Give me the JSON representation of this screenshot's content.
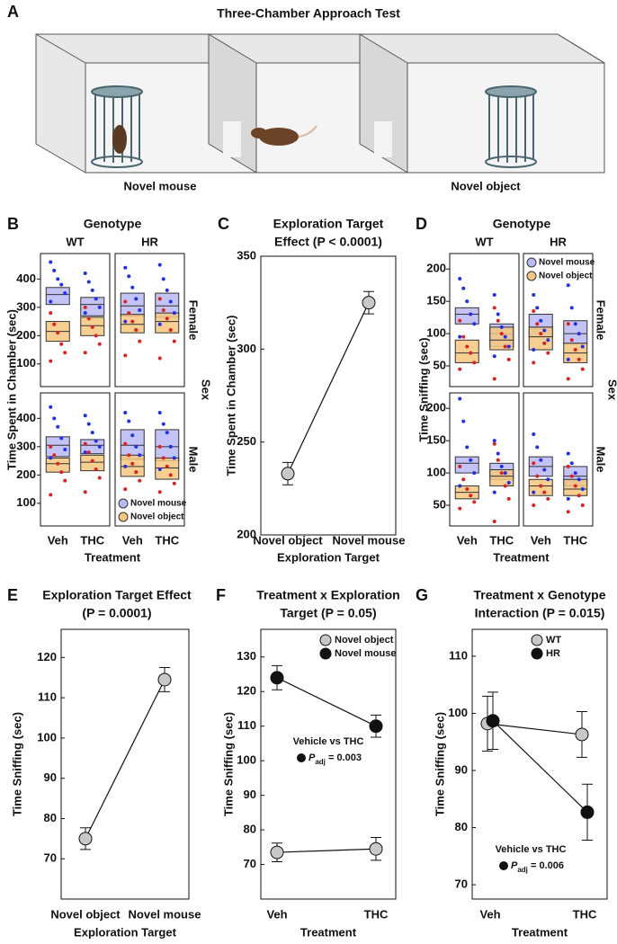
{
  "diagram": {
    "label": "A",
    "title": "Three-Chamber Approach Test",
    "labels": [
      "Novel mouse",
      "Novel object"
    ]
  },
  "chart_data": [
    {
      "type": "box",
      "label": "B",
      "title": [
        "Genotype"
      ],
      "columns": [
        "WT",
        "HR"
      ],
      "rows": [
        "Female",
        "Male"
      ],
      "row_title": "Sex",
      "ylabel": "Time Spent in Chamber (sec)",
      "xlabel": "Treatment",
      "categories": [
        "Veh",
        "THC"
      ],
      "ylim": [
        20,
        490
      ],
      "yticks": [
        100,
        200,
        300,
        400
      ],
      "legend": "bottom-right",
      "series": [
        {
          "name": "Novel mouse",
          "color": "#b9b9f3",
          "point_color": "#1f2ef0",
          "values": [
            [
              [
                {
                  "q1": 310,
                  "median": 345,
                  "q3": 370,
                  "points": [
                    460,
                    430,
                    400,
                    380,
                    350,
                    320
                  ]
                },
                {
                  "q1": 270,
                  "median": 310,
                  "q3": 335,
                  "points": [
                    420,
                    390,
                    360,
                    330,
                    300,
                    280
                  ]
                }
              ],
              [
                {
                  "q1": 270,
                  "median": 305,
                  "q3": 350,
                  "points": [
                    440,
                    410,
                    370,
                    330,
                    290,
                    250
                  ]
                },
                {
                  "q1": 265,
                  "median": 305,
                  "q3": 350,
                  "points": [
                    450,
                    400,
                    360,
                    320,
                    280,
                    240
                  ]
                }
              ]
            ],
            [
              [
                {
                  "q1": 265,
                  "median": 305,
                  "q3": 335,
                  "points": [
                    440,
                    400,
                    370,
                    330,
                    290,
                    260
                  ]
                },
                {
                  "q1": 275,
                  "median": 305,
                  "q3": 325,
                  "points": [
                    410,
                    380,
                    350,
                    320,
                    300,
                    280
                  ]
                }
              ],
              [
                {
                  "q1": 255,
                  "median": 305,
                  "q3": 360,
                  "points": [
                    420,
                    390,
                    340,
                    300,
                    270,
                    230
                  ]
                },
                {
                  "q1": 250,
                  "median": 300,
                  "q3": 360,
                  "points": [
                    420,
                    380,
                    350,
                    300,
                    260,
                    220
                  ]
                }
              ]
            ]
          ]
        },
        {
          "name": "Novel object",
          "color": "#f5c77e",
          "point_color": "#e01f1f",
          "values": [
            [
              [
                {
                  "q1": 180,
                  "median": 215,
                  "q3": 250,
                  "points": [
                    280,
                    240,
                    210,
                    170,
                    140,
                    110
                  ]
                },
                {
                  "q1": 200,
                  "median": 235,
                  "q3": 265,
                  "points": [
                    300,
                    260,
                    230,
                    200,
                    170,
                    140
                  ]
                }
              ],
              [
                {
                  "q1": 210,
                  "median": 240,
                  "q3": 275,
                  "points": [
                    320,
                    280,
                    250,
                    220,
                    180,
                    130
                  ]
                },
                {
                  "q1": 210,
                  "median": 250,
                  "q3": 280,
                  "points": [
                    330,
                    290,
                    260,
                    220,
                    180,
                    120
                  ]
                }
              ]
            ],
            [
              [
                {
                  "q1": 210,
                  "median": 240,
                  "q3": 260,
                  "points": [
                    300,
                    270,
                    240,
                    210,
                    180,
                    130
                  ]
                },
                {
                  "q1": 215,
                  "median": 245,
                  "q3": 270,
                  "points": [
                    310,
                    280,
                    250,
                    220,
                    190,
                    140
                  ]
                }
              ],
              [
                {
                  "q1": 195,
                  "median": 230,
                  "q3": 270,
                  "points": [
                    310,
                    270,
                    240,
                    210,
                    180,
                    150
                  ]
                },
                {
                  "q1": 185,
                  "median": 225,
                  "q3": 260,
                  "points": [
                    300,
                    260,
                    230,
                    200,
                    170,
                    140
                  ]
                }
              ]
            ]
          ]
        }
      ]
    },
    {
      "type": "line",
      "label": "C",
      "title": [
        "Exploration Target",
        "Effect (P < 0.0001)"
      ],
      "ylabel": "Time Spent in Chamber (sec)",
      "xlabel": "Exploration Target",
      "categories": [
        "Novel object",
        "Novel mouse"
      ],
      "values": [
        233,
        325
      ],
      "errors": [
        6,
        6
      ],
      "color": "#c8c8c8",
      "ylim": [
        200,
        350
      ],
      "yticks": [
        200,
        250,
        300,
        350
      ]
    },
    {
      "type": "box",
      "label": "D",
      "title": [
        "Genotype"
      ],
      "columns": [
        "WT",
        "HR"
      ],
      "rows": [
        "Female",
        "Male"
      ],
      "row_title": "Sex",
      "ylabel": "Time Sniffing (sec)",
      "xlabel": "Treatment",
      "categories": [
        "Veh",
        "THC"
      ],
      "ylim": [
        18,
        224
      ],
      "yticks": [
        50,
        100,
        150,
        200
      ],
      "legend": "top-right",
      "series": [
        {
          "name": "Novel mouse",
          "color": "#b9b9f3",
          "point_color": "#1f2ef0",
          "values": [
            [
              [
                {
                  "q1": 115,
                  "median": 130,
                  "q3": 140,
                  "points": [
                    185,
                    170,
                    150,
                    130,
                    115,
                    95
                  ]
                },
                {
                  "q1": 80,
                  "median": 100,
                  "q3": 115,
                  "points": [
                    160,
                    130,
                    110,
                    95,
                    80,
                    65
                  ]
                }
              ],
              [
                {
                  "q1": 95,
                  "median": 110,
                  "q3": 130,
                  "points": [
                    160,
                    140,
                    120,
                    105,
                    90,
                    75
                  ]
                },
                {
                  "q1": 85,
                  "median": 100,
                  "q3": 120,
                  "points": [
                    175,
                    140,
                    115,
                    100,
                    80,
                    60
                  ]
                }
              ]
            ],
            [
              [
                {
                  "q1": 100,
                  "median": 115,
                  "q3": 125,
                  "points": [
                    215,
                    180,
                    140,
                    120,
                    100,
                    80
                  ]
                },
                {
                  "q1": 90,
                  "median": 105,
                  "q3": 115,
                  "points": [
                    150,
                    130,
                    110,
                    100,
                    85,
                    70
                  ]
                }
              ],
              [
                {
                  "q1": 95,
                  "median": 110,
                  "q3": 125,
                  "points": [
                    160,
                    140,
                    120,
                    105,
                    90,
                    70
                  ]
                },
                {
                  "q1": 80,
                  "median": 95,
                  "q3": 110,
                  "points": [
                    130,
                    115,
                    100,
                    90,
                    75,
                    60
                  ]
                }
              ]
            ]
          ]
        },
        {
          "name": "Novel object",
          "color": "#f5c77e",
          "point_color": "#e01f1f",
          "values": [
            [
              [
                {
                  "q1": 55,
                  "median": 70,
                  "q3": 90,
                  "points": [
                    120,
                    95,
                    80,
                    70,
                    55,
                    45
                  ]
                },
                {
                  "q1": 75,
                  "median": 90,
                  "q3": 110,
                  "points": [
                    140,
                    120,
                    100,
                    80,
                    60,
                    30
                  ]
                }
              ],
              [
                {
                  "q1": 75,
                  "median": 95,
                  "q3": 110,
                  "points": [
                    135,
                    115,
                    100,
                    85,
                    70,
                    55
                  ]
                },
                {
                  "q1": 55,
                  "median": 70,
                  "q3": 85,
                  "points": [
                    115,
                    90,
                    75,
                    60,
                    45,
                    30
                  ]
                }
              ]
            ],
            [
              [
                {
                  "q1": 60,
                  "median": 70,
                  "q3": 80,
                  "points": [
                    110,
                    90,
                    75,
                    65,
                    55,
                    45
                  ]
                },
                {
                  "q1": 80,
                  "median": 95,
                  "q3": 105,
                  "points": [
                    145,
                    120,
                    100,
                    80,
                    60,
                    25
                  ]
                }
              ],
              [
                {
                  "q1": 65,
                  "median": 80,
                  "q3": 90,
                  "points": [
                    115,
                    95,
                    80,
                    70,
                    60,
                    50
                  ]
                },
                {
                  "q1": 65,
                  "median": 75,
                  "q3": 90,
                  "points": [
                    110,
                    95,
                    80,
                    65,
                    50,
                    40
                  ]
                }
              ]
            ]
          ]
        }
      ]
    },
    {
      "type": "line",
      "label": "E",
      "title": [
        "Exploration Target Effect",
        "(P = 0.0001)"
      ],
      "ylabel": "Time Sniffing (sec)",
      "xlabel": "Exploration Target",
      "categories": [
        "Novel object",
        "Novel mouse"
      ],
      "values": [
        75,
        114.5
      ],
      "errors": [
        2.7,
        3
      ],
      "color": "#c8c8c8",
      "ylim": [
        60,
        127
      ],
      "yticks": [
        70,
        80,
        90,
        100,
        110,
        120
      ]
    },
    {
      "type": "line",
      "label": "F",
      "title": [
        "Treatment x Exploration",
        "Target (P = 0.05)"
      ],
      "ylabel": "Time Sniffing (sec)",
      "xlabel": "Treatment",
      "categories": [
        "Veh",
        "THC"
      ],
      "ylim": [
        60,
        138
      ],
      "yticks": [
        70,
        80,
        90,
        100,
        110,
        120,
        130
      ],
      "legend": "top-right",
      "series": [
        {
          "name": "Novel object",
          "color": "#c8c8c8",
          "values": [
            73.5,
            74.5
          ],
          "errors": [
            2.7,
            3.3
          ]
        },
        {
          "name": "Novel mouse",
          "color": "#111111",
          "values": [
            124,
            110
          ],
          "errors": [
            3.5,
            3.2
          ]
        }
      ],
      "annotation": {
        "text": "Vehicle vs THC",
        "stat": "P",
        "sub": "adj",
        "value": " = 0.003"
      }
    },
    {
      "type": "line",
      "label": "G",
      "title": [
        "Treatment x Genotype",
        "Interaction (P = 0.015)"
      ],
      "ylabel": "Time Sniffing (sec)",
      "xlabel": "Treatment",
      "categories": [
        "Veh",
        "THC"
      ],
      "ylim": [
        67.5,
        114.7
      ],
      "yticks": [
        70,
        80,
        90,
        100,
        110
      ],
      "legend": "top-right",
      "series": [
        {
          "name": "WT",
          "color": "#c8c8c8",
          "values": [
            98.2,
            96.3
          ],
          "errors": [
            4.8,
            4
          ]
        },
        {
          "name": "HR",
          "color": "#111111",
          "values": [
            98.7,
            82.7
          ],
          "errors": [
            5,
            4.9
          ]
        }
      ],
      "annotation": {
        "text": "Vehicle vs THC",
        "stat": "P",
        "sub": "adj",
        "value": " = 0.006"
      }
    }
  ]
}
